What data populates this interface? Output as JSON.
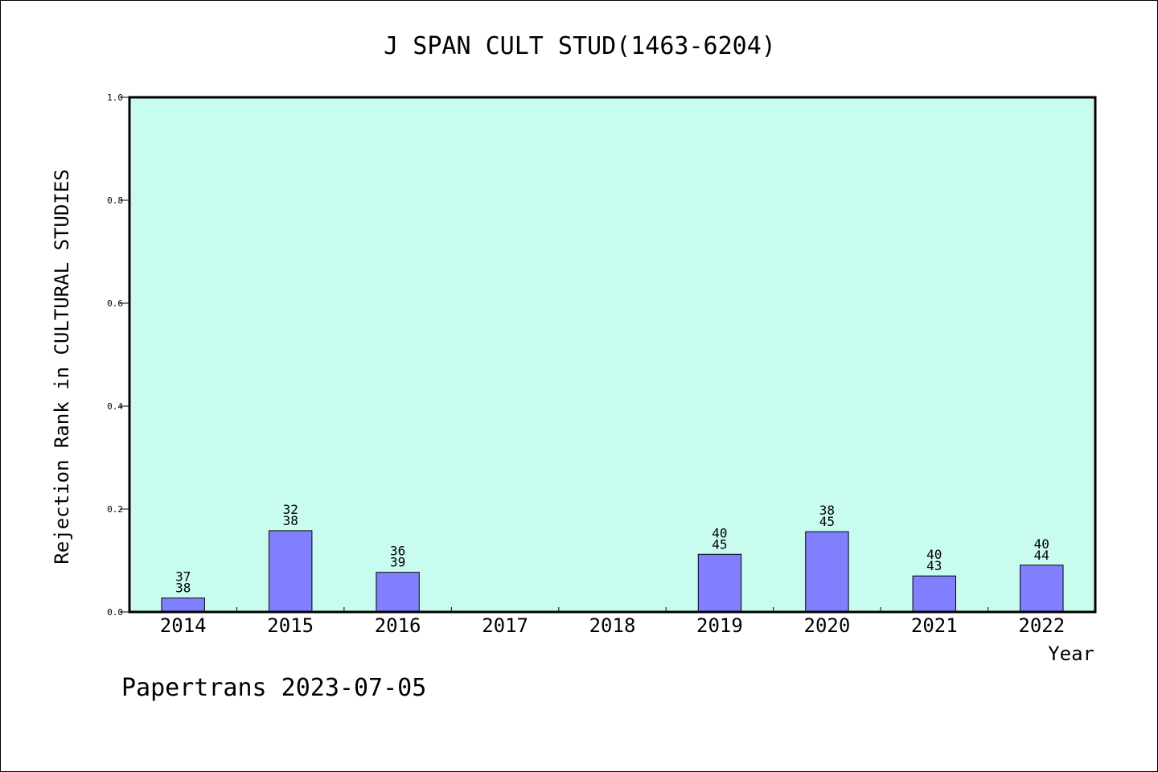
{
  "chart_data": {
    "type": "bar",
    "title": "J SPAN CULT STUD(1463-6204)",
    "xlabel": "Year",
    "ylabel": "Rejection Rank in CULTURAL STUDIES",
    "ylim": [
      0,
      1.0
    ],
    "yticks": [
      "0.0",
      "0.2",
      "0.4",
      "0.6",
      "0.8",
      "1.0"
    ],
    "categories": [
      "2014",
      "2015",
      "2016",
      "2017",
      "2018",
      "2019",
      "2020",
      "2021",
      "2022"
    ],
    "values": [
      0.027,
      0.158,
      0.077,
      0,
      0,
      0.112,
      0.156,
      0.07,
      0.091
    ],
    "bar_labels": [
      {
        "top": "37",
        "bottom": "38"
      },
      {
        "top": "32",
        "bottom": "38"
      },
      {
        "top": "36",
        "bottom": "39"
      },
      null,
      null,
      {
        "top": "40",
        "bottom": "45"
      },
      {
        "top": "38",
        "bottom": "45"
      },
      {
        "top": "40",
        "bottom": "43"
      },
      {
        "top": "40",
        "bottom": "44"
      }
    ],
    "plot_background": "#c8fcee",
    "bar_color": "#8080ff",
    "grid": false
  },
  "footer": "Papertrans 2023-07-05"
}
